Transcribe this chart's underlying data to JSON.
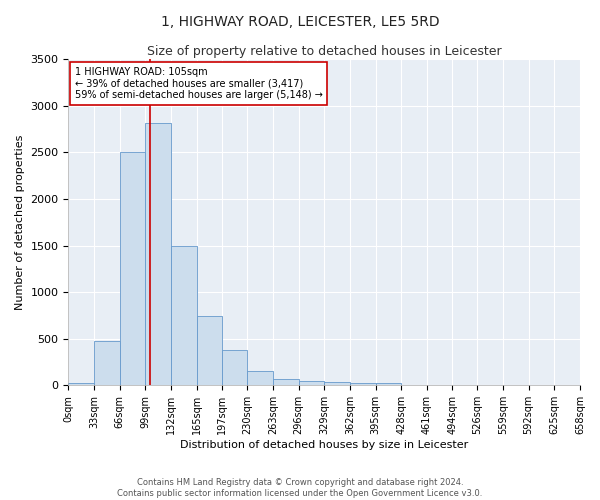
{
  "title": "1, HIGHWAY ROAD, LEICESTER, LE5 5RD",
  "subtitle": "Size of property relative to detached houses in Leicester",
  "xlabel": "Distribution of detached houses by size in Leicester",
  "ylabel": "Number of detached properties",
  "footer_line1": "Contains HM Land Registry data © Crown copyright and database right 2024.",
  "footer_line2": "Contains public sector information licensed under the Open Government Licence v3.0.",
  "bar_edges": [
    0,
    33,
    66,
    99,
    132,
    165,
    197,
    230,
    263,
    296,
    329,
    362,
    395,
    428,
    461,
    494,
    526,
    559,
    592,
    625,
    658
  ],
  "bar_heights": [
    20,
    480,
    2500,
    2820,
    1500,
    740,
    380,
    155,
    70,
    50,
    40,
    30,
    25,
    0,
    0,
    0,
    0,
    0,
    0,
    0
  ],
  "bar_color": "#ccdded",
  "bar_edge_color": "#6699cc",
  "property_sqm": 105,
  "property_line_color": "#cc0000",
  "annotation_text": "1 HIGHWAY ROAD: 105sqm\n← 39% of detached houses are smaller (3,417)\n59% of semi-detached houses are larger (5,148) →",
  "annotation_box_color": "#cc0000",
  "ylim": [
    0,
    3500
  ],
  "yticks": [
    0,
    500,
    1000,
    1500,
    2000,
    2500,
    3000,
    3500
  ],
  "background_color": "#e8eef5",
  "grid_color": "white",
  "title_fontsize": 10,
  "subtitle_fontsize": 9,
  "ylabel_fontsize": 8,
  "xlabel_fontsize": 8,
  "tick_label_fontsize": 7,
  "annotation_fontsize": 7,
  "footer_fontsize": 6
}
